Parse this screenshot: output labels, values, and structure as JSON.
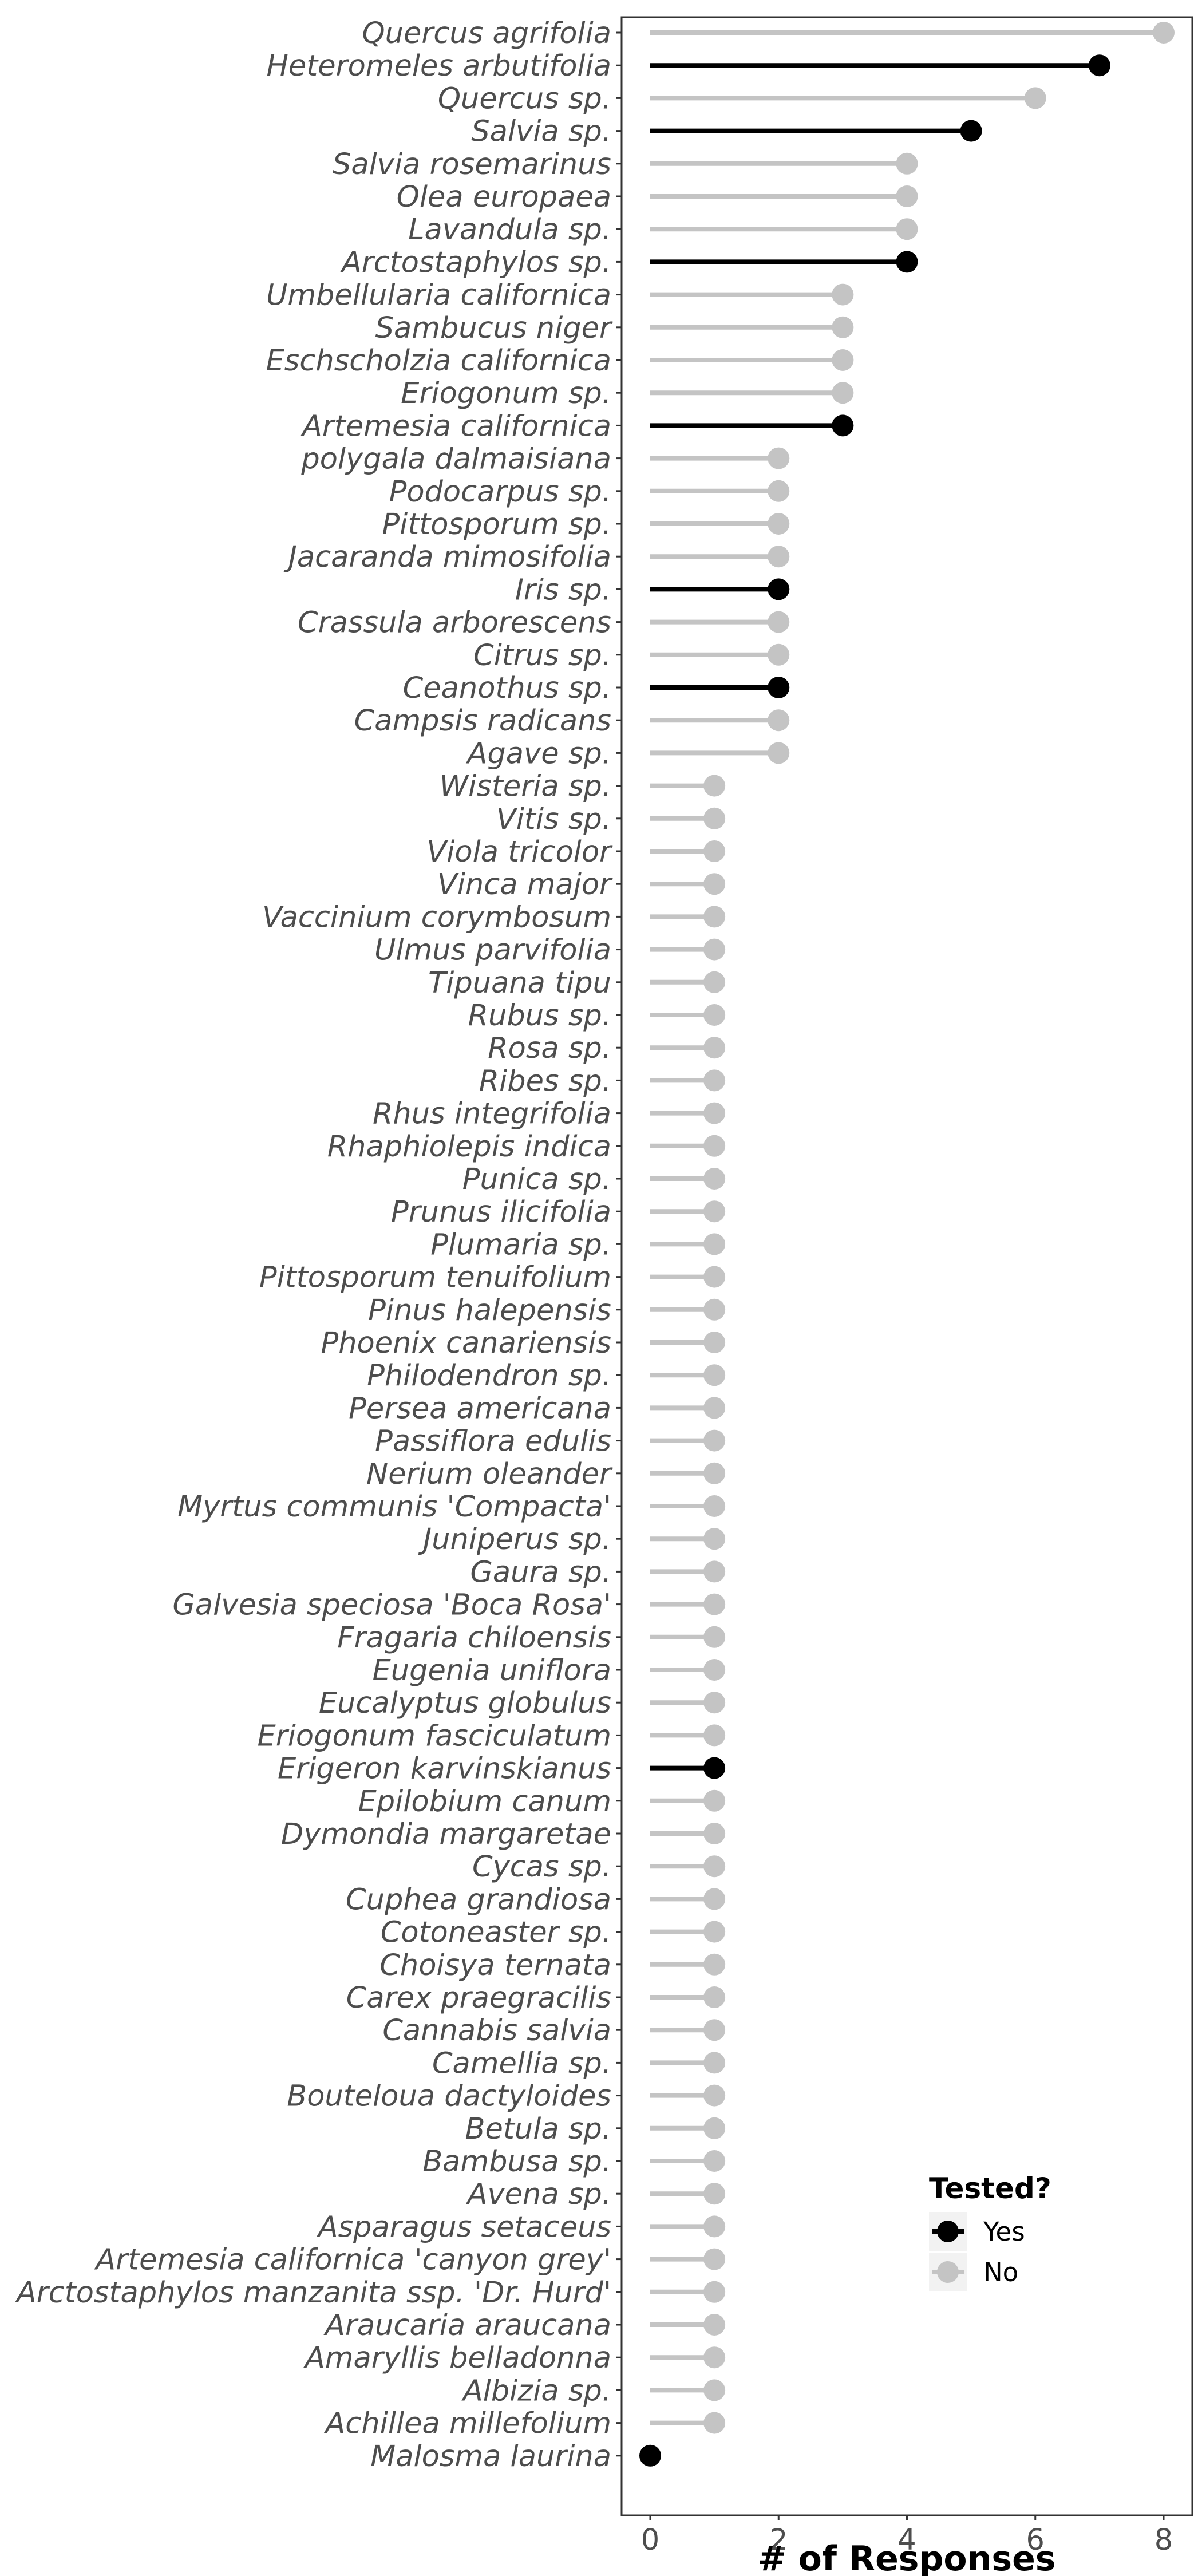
{
  "chart_data": {
    "type": "lollipop",
    "title": "",
    "xlabel": "# of Responses",
    "ylabel": "",
    "xlim": [
      -0.3,
      8.4
    ],
    "xticks": [
      0,
      2,
      4,
      6,
      8
    ],
    "grid": false,
    "legend": {
      "title": "Tested?",
      "placement": "bottom-right",
      "entries": [
        {
          "label": "Yes",
          "color": "#000000"
        },
        {
          "label": "No",
          "color": "#c4c4c4"
        }
      ]
    },
    "categories": [
      "Quercus agrifolia",
      "Heteromeles arbutifolia",
      "Quercus sp.",
      "Salvia sp.",
      "Salvia rosemarinus",
      "Olea europaea",
      "Lavandula sp.",
      "Arctostaphylos sp.",
      "Umbellularia californica",
      "Sambucus niger",
      "Eschscholzia californica",
      "Eriogonum sp.",
      "Artemesia californica",
      "polygala dalmaisiana",
      "Podocarpus sp.",
      "Pittosporum sp.",
      "Jacaranda mimosifolia",
      "Iris sp.",
      "Crassula arborescens",
      "Citrus sp.",
      "Ceanothus sp.",
      "Campsis radicans",
      "Agave sp.",
      "Wisteria sp.",
      "Vitis sp.",
      "Viola tricolor",
      "Vinca major",
      "Vaccinium corymbosum",
      "Ulmus parvifolia",
      "Tipuana tipu",
      "Rubus sp.",
      "Rosa sp.",
      "Ribes sp.",
      "Rhus integrifolia",
      "Rhaphiolepis indica",
      "Punica sp.",
      "Prunus ilicifolia",
      "Plumaria sp.",
      "Pittosporum tenuifolium",
      "Pinus halepensis",
      "Phoenix canariensis",
      "Philodendron sp.",
      "Persea americana",
      "Passiflora edulis",
      "Nerium oleander",
      "Myrtus communis 'Compacta'",
      "Juniperus sp.",
      "Gaura sp.",
      "Galvesia speciosa 'Boca Rosa'",
      "Fragaria chiloensis",
      "Eugenia uniflora",
      "Eucalyptus globulus",
      "Eriogonum fasciculatum",
      "Erigeron karvinskianus",
      "Epilobium canum",
      "Dymondia margaretae",
      "Cycas sp.",
      "Cuphea grandiosa",
      "Cotoneaster sp.",
      "Choisya ternata",
      "Carex praegracilis",
      "Cannabis salvia",
      "Camellia sp.",
      "Bouteloua dactyloides",
      "Betula sp.",
      "Bambusa sp.",
      "Avena sp.",
      "Asparagus setaceus",
      "Artemesia californica 'canyon grey'",
      "Arctostaphylos manzanita ssp. 'Dr. Hurd'",
      "Araucaria araucana",
      "Amaryllis belladonna",
      "Albizia sp.",
      "Achillea millefolium",
      "Malosma laurina"
    ],
    "values": [
      8,
      7,
      6,
      5,
      4,
      4,
      4,
      4,
      3,
      3,
      3,
      3,
      3,
      2,
      2,
      2,
      2,
      2,
      2,
      2,
      2,
      2,
      2,
      1,
      1,
      1,
      1,
      1,
      1,
      1,
      1,
      1,
      1,
      1,
      1,
      1,
      1,
      1,
      1,
      1,
      1,
      1,
      1,
      1,
      1,
      1,
      1,
      1,
      1,
      1,
      1,
      1,
      1,
      1,
      1,
      1,
      1,
      1,
      1,
      1,
      1,
      1,
      1,
      1,
      1,
      1,
      1,
      1,
      1,
      1,
      1,
      1,
      1,
      1,
      0
    ],
    "tested": [
      "No",
      "Yes",
      "No",
      "Yes",
      "No",
      "No",
      "No",
      "Yes",
      "No",
      "No",
      "No",
      "No",
      "Yes",
      "No",
      "No",
      "No",
      "No",
      "Yes",
      "No",
      "No",
      "Yes",
      "No",
      "No",
      "No",
      "No",
      "No",
      "No",
      "No",
      "No",
      "No",
      "No",
      "No",
      "No",
      "No",
      "No",
      "No",
      "No",
      "No",
      "No",
      "No",
      "No",
      "No",
      "No",
      "No",
      "No",
      "No",
      "No",
      "No",
      "No",
      "No",
      "No",
      "No",
      "No",
      "Yes",
      "No",
      "No",
      "No",
      "No",
      "No",
      "No",
      "No",
      "No",
      "No",
      "No",
      "No",
      "No",
      "No",
      "No",
      "No",
      "No",
      "No",
      "No",
      "No",
      "No",
      "Yes"
    ]
  }
}
